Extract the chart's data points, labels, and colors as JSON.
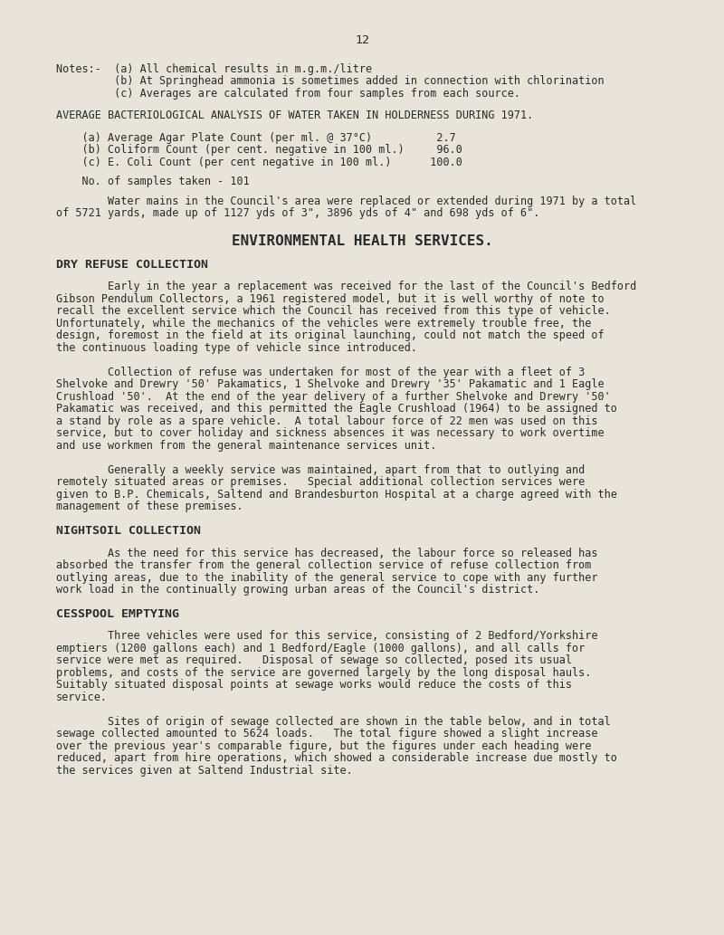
{
  "bg_color": "#e8e4da",
  "text_color": "#2a2a2a",
  "page_number": "12",
  "notes_a": "Notes:-  (a) All chemical results in m.g.m./litre",
  "notes_b": "         (b) At Springhead ammonia is sometimes added in connection with chlorination",
  "notes_c": "         (c) Averages are calculated from four samples from each source.",
  "bact_header": "AVERAGE BACTERIOLOGICAL ANALYSIS OF WATER TAKEN IN HOLDERNESS DURING 1971.",
  "bact_a": "    (a) Average Agar Plate Count (per ml. @ 37°C)          2.7",
  "bact_b": "    (b) Coliform Count (per cent. negative in 100 ml.)     96.0",
  "bact_c": "    (c) E. Coli Count (per cent negative in 100 ml.)      100.0",
  "samples": "    No. of samples taken - 101",
  "water_line1": "        Water mains in the Council's area were replaced or extended during 1971 by a total",
  "water_line2": "of 5721 yards, made up of 1127 yds of 3\", 3896 yds of 4\" and 698 yds of 6\".",
  "env_header": "ENVIRONMENTAL HEALTH SERVICES.",
  "dry_header": "DRY REFUSE COLLECTION",
  "p1_lines": [
    "        Early in the year a replacement was received for the last of the Council's Bedford",
    "Gibson Pendulum Collectors, a 1961 registered model, but it is well worthy of note to",
    "recall the excellent service which the Council has received from this type of vehicle.",
    "Unfortunately, while the mechanics of the vehicles were extremely trouble free, the",
    "design, foremost in the field at its original launching, could not match the speed of",
    "the continuous loading type of vehicle since introduced."
  ],
  "p2_lines": [
    "        Collection of refuse was undertaken for most of the year with a fleet of 3",
    "Shelvoke and Drewry '50' Pakamatics, 1 Shelvoke and Drewry '35' Pakamatic and 1 Eagle",
    "Crushload '50'.  At the end of the year delivery of a further Shelvoke and Drewry '50'",
    "Pakamatic was received, and this permitted the Eagle Crushload (1964) to be assigned to",
    "a stand by role as a spare vehicle.  A total labour force of 22 men was used on this",
    "service, but to cover holiday and sickness absences it was necessary to work overtime",
    "and use workmen from the general maintenance services unit."
  ],
  "p3_lines": [
    "        Generally a weekly service was maintained, apart from that to outlying and",
    "remotely situated areas or premises.   Special additional collection services were",
    "given to B.P. Chemicals, Saltend and Brandesburton Hospital at a charge agreed with the",
    "management of these premises."
  ],
  "nightsoil_header": "NIGHTSOIL COLLECTION",
  "pn_lines": [
    "        As the need for this service has decreased, the labour force so released has",
    "absorbed the transfer from the general collection service of refuse collection from",
    "outlying areas, due to the inability of the general service to cope with any further",
    "work load in the continually growing urban areas of the Council's district."
  ],
  "cesspool_header": "CESSPOOL EMPTYING",
  "pc1_lines": [
    "        Three vehicles were used for this service, consisting of 2 Bedford/Yorkshire",
    "emptiers (1200 gallons each) and 1 Bedford/Eagle (1000 gallons), and all calls for",
    "service were met as required.   Disposal of sewage so collected, posed its usual",
    "problems, and costs of the service are governed largely by the long disposal hauls.",
    "Suitably situated disposal points at sewage works would reduce the costs of this",
    "service."
  ],
  "pc2_lines": [
    "        Sites of origin of sewage collected are shown in the table below, and in total",
    "sewage collected amounted to 5624 loads.   The total figure showed a slight increase",
    "over the previous year's comparable figure, but the figures under each heading were",
    "reduced, apart from hire operations, which showed a considerable increase due mostly to",
    "the services given at Saltend Industrial site."
  ]
}
